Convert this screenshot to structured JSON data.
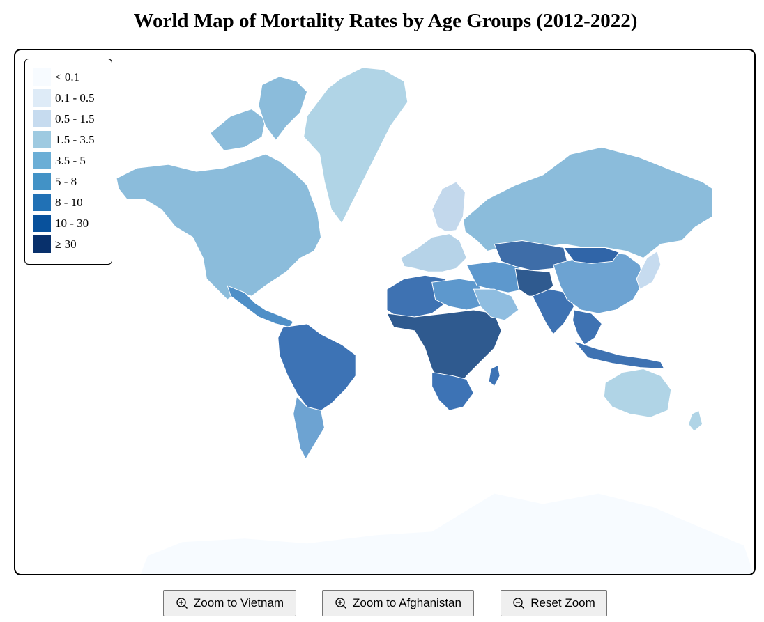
{
  "title": "World Map of Mortality Rates by Age Groups (2012-2022)",
  "legend": [
    {
      "label": "< 0.1",
      "color": "#f7fbff"
    },
    {
      "label": "0.1 - 0.5",
      "color": "#deebf7"
    },
    {
      "label": "0.5 - 1.5",
      "color": "#c6dbef"
    },
    {
      "label": "1.5 - 3.5",
      "color": "#9ecae1"
    },
    {
      "label": "3.5 - 5",
      "color": "#6baed6"
    },
    {
      "label": "5 - 8",
      "color": "#4292c6"
    },
    {
      "label": "8 - 10",
      "color": "#2171b5"
    },
    {
      "label": "10 - 30",
      "color": "#08519c"
    },
    {
      "label": "≥ 30",
      "color": "#08306b"
    }
  ],
  "region_colors": {
    "greenland": "#b0d4e6",
    "north_america": "#8bbcdb",
    "central_america": "#4e8fc7",
    "south_america_north": "#3d73b5",
    "south_america_south": "#6da3d2",
    "europe": "#b6d3e8",
    "scandinavia": "#c3d8ec",
    "russia": "#8bbcdb",
    "north_africa": "#3e72b2",
    "egypt_libya": "#5d98cd",
    "sub_saharan_africa": "#2f5a8f",
    "southern_africa": "#3d73b5",
    "middle_east": "#5d98cd",
    "arabia": "#8fbde0",
    "central_asia": "#3e6da8",
    "afghanistan_region": "#2f5a8f",
    "india": "#3e72b2",
    "china": "#6da3d2",
    "mongolia": "#3065a8",
    "southeast_asia": "#3e72b2",
    "japan": "#c6dbef",
    "australia": "#b0d4e6",
    "antarctica": "#f7fbff"
  },
  "buttons": [
    {
      "label": "Zoom to Vietnam",
      "icon": "zoom-in-icon"
    },
    {
      "label": "Zoom to Afghanistan",
      "icon": "zoom-in-icon"
    },
    {
      "label": "Reset Zoom",
      "icon": "zoom-out-icon"
    }
  ]
}
